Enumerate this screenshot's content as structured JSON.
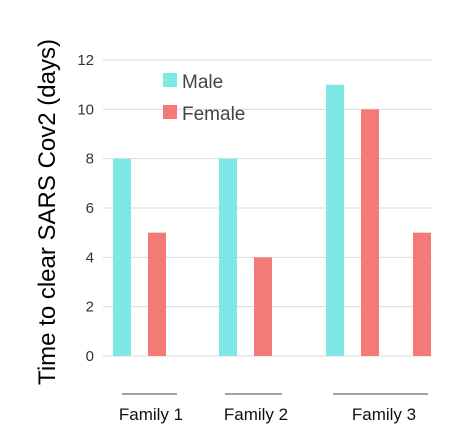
{
  "chart_data": {
    "type": "bar",
    "ylabel": "Time to clear SARS Cov2 (days)",
    "ylim": [
      0,
      12
    ],
    "yticks": [
      0,
      2,
      4,
      6,
      8,
      10,
      12
    ],
    "grid": true,
    "legend_position": "top-left",
    "groups": [
      "Family 1",
      "Family 2",
      "Family 3"
    ],
    "bars": [
      {
        "group": "Family 1",
        "series": "Male",
        "value": 8
      },
      {
        "group": "Family 1",
        "series": "Female",
        "value": 5
      },
      {
        "group": "Family 2",
        "series": "Male",
        "value": 8
      },
      {
        "group": "Family 2",
        "series": "Female",
        "value": 4
      },
      {
        "group": "Family 3",
        "series": "Male",
        "value": 11
      },
      {
        "group": "Family 3",
        "series": "Female",
        "value": 10
      },
      {
        "group": "Family 3",
        "series": "Female",
        "value": 5
      }
    ],
    "series": [
      {
        "name": "Male",
        "color": "#7ee8e6"
      },
      {
        "name": "Female",
        "color": "#f47a78"
      }
    ]
  }
}
